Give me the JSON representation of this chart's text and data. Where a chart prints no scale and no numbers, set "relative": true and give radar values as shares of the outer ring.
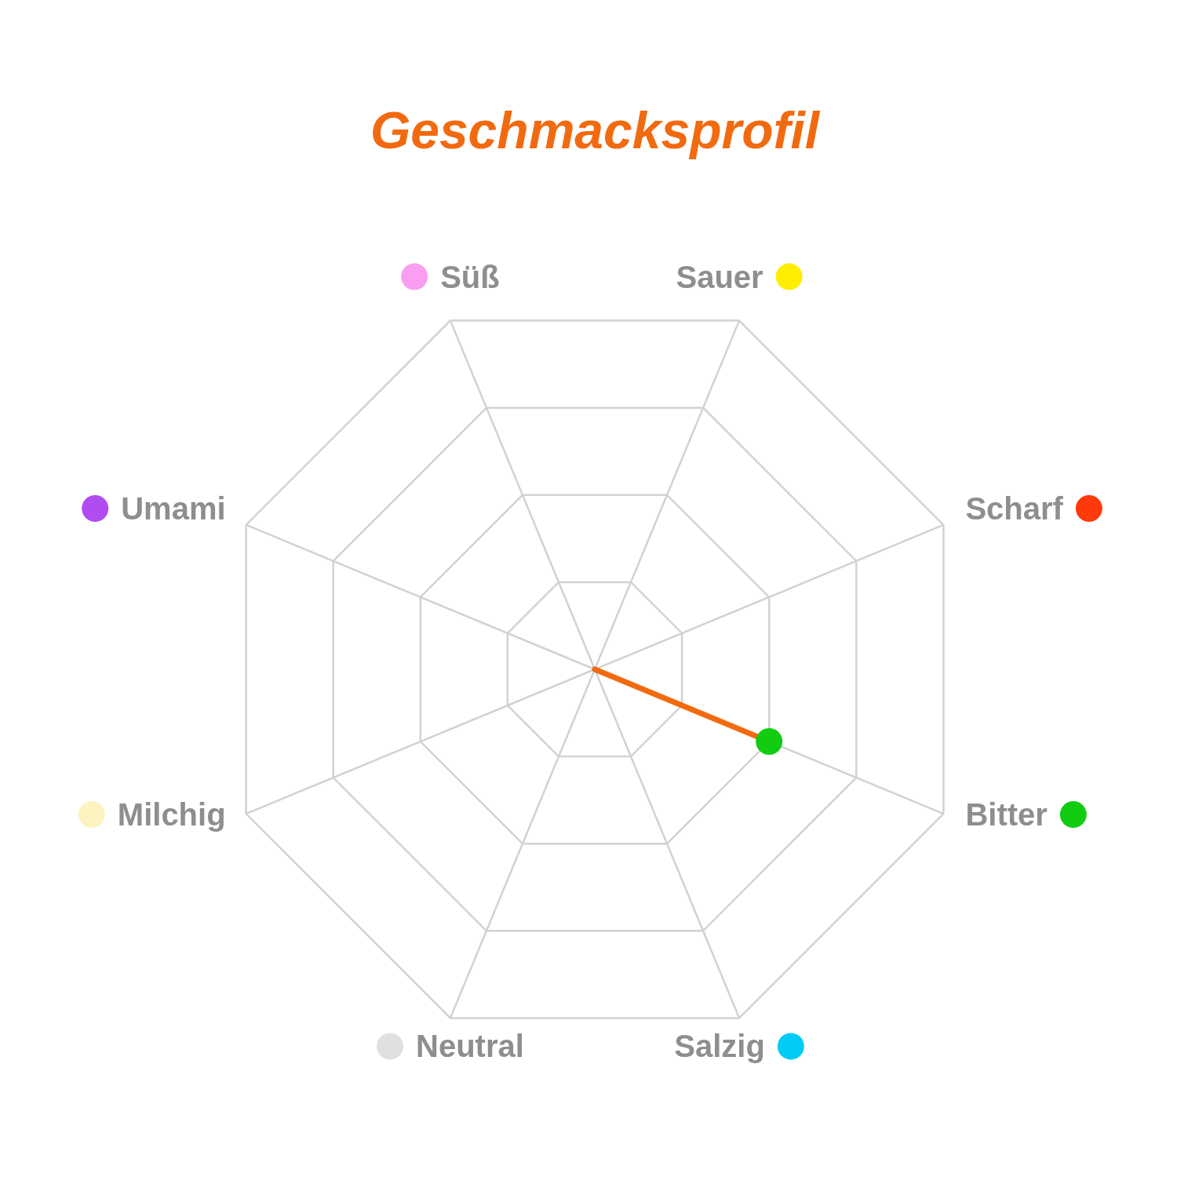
{
  "chart_data": {
    "type": "radar",
    "title": "Geschmacksprofil",
    "categories": [
      "Sauer",
      "Scharf",
      "Bitter",
      "Salzig",
      "Neutral",
      "Milchig",
      "Umami",
      "Süß"
    ],
    "relative": true,
    "grid": true,
    "marker": "circle",
    "colors": [
      "#ffee00",
      "#ff3a0a",
      "#11cc11",
      "#00ccf5",
      "#e0e0e0",
      "#fdf3c0",
      "#b14cf0",
      "#f99ef0"
    ],
    "series": [
      {
        "color": "#f26a10",
        "values": [
          0,
          0,
          0.5,
          0,
          0,
          0,
          0,
          0
        ]
      }
    ]
  }
}
